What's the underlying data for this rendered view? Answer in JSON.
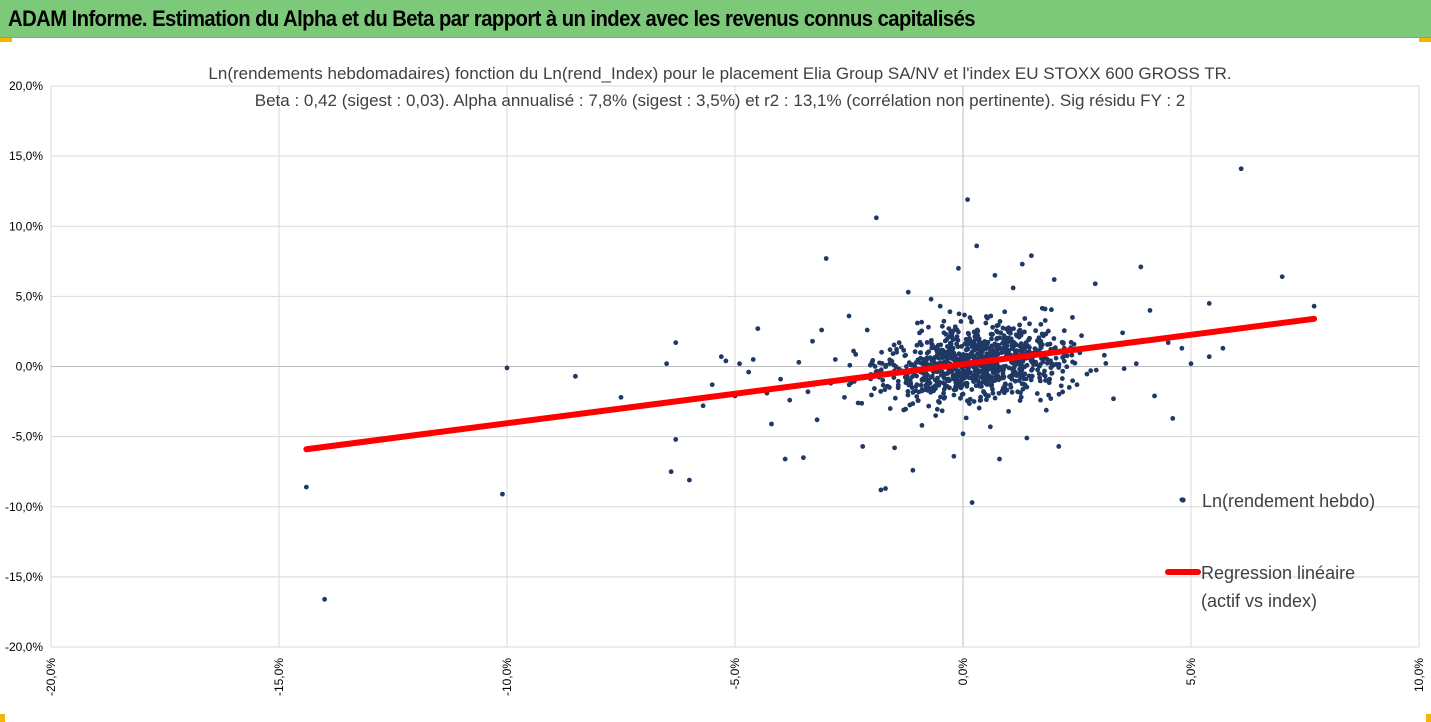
{
  "banner": {
    "title": "ADAM Informe. Estimation du Alpha et du Beta par rapport à un index avec les revenus connus capitalisés",
    "background_color": "#7dc97a",
    "corner_color": "#f5b400"
  },
  "chart_data": {
    "type": "scatter",
    "title_lines": [
      "Ln(rendements hebdomadaires) fonction du Ln(rend_Index) pour le placement Elia Group SA/NV et l'index EU STOXX 600 GROSS TR.",
      "Beta : 0,42 (sigest : 0,03). Alpha annualisé : 7,8% (sigest : 3,5%) et r2 : 13,1% (corrélation non pertinente). Sig résidu FY : 2"
    ],
    "xlim": [
      -0.2,
      0.1
    ],
    "ylim": [
      -0.2,
      0.2
    ],
    "x_ticks": [
      -0.2,
      -0.15,
      -0.1,
      -0.05,
      0.0,
      0.05,
      0.1
    ],
    "x_tick_labels": [
      "-20,0%",
      "-15,0%",
      "-10,0%",
      "-5,0%",
      "0,0%",
      "5,0%",
      "10,0%"
    ],
    "y_ticks": [
      0.2,
      0.15,
      0.1,
      0.05,
      0.0,
      -0.05,
      -0.1,
      -0.15,
      -0.2
    ],
    "y_tick_labels": [
      "20,0%",
      "15,0%",
      "10,0%",
      "5,0%",
      "0,0%",
      "-5,0%",
      "-10,0%",
      "-15,0%",
      "-20,0%"
    ],
    "grid": "vertical",
    "legend_position": "right",
    "series": [
      {
        "name": "Ln(rendement hebdo)",
        "kind": "scatter",
        "color": "#1f3864",
        "points": [
          [
            -0.144,
            -0.086
          ],
          [
            -0.14,
            -0.166
          ],
          [
            -0.101,
            -0.091
          ],
          [
            -0.1,
            -0.001
          ],
          [
            -0.085,
            -0.007
          ],
          [
            -0.084,
            -0.034
          ],
          [
            -0.075,
            -0.022
          ],
          [
            -0.065,
            0.002
          ],
          [
            -0.064,
            -0.075
          ],
          [
            -0.063,
            0.017
          ],
          [
            -0.063,
            -0.052
          ],
          [
            -0.06,
            -0.081
          ],
          [
            -0.057,
            -0.028
          ],
          [
            -0.055,
            -0.013
          ],
          [
            -0.053,
            0.007
          ],
          [
            -0.052,
            0.004
          ],
          [
            -0.05,
            -0.021
          ],
          [
            -0.049,
            0.002
          ],
          [
            -0.047,
            -0.004
          ],
          [
            -0.046,
            0.005
          ],
          [
            -0.045,
            0.027
          ],
          [
            -0.043,
            -0.019
          ],
          [
            -0.042,
            -0.041
          ],
          [
            -0.04,
            -0.009
          ],
          [
            -0.039,
            -0.066
          ],
          [
            -0.038,
            -0.024
          ],
          [
            -0.036,
            0.003
          ],
          [
            -0.035,
            -0.065
          ],
          [
            -0.034,
            -0.018
          ],
          [
            -0.033,
            0.018
          ],
          [
            -0.032,
            -0.038
          ],
          [
            -0.031,
            0.026
          ],
          [
            -0.03,
            0.077
          ],
          [
            -0.029,
            -0.012
          ],
          [
            -0.028,
            0.005
          ],
          [
            -0.026,
            -0.022
          ],
          [
            -0.025,
            0.036
          ],
          [
            -0.024,
            0.011
          ],
          [
            -0.023,
            -0.026
          ],
          [
            -0.022,
            -0.057
          ],
          [
            -0.021,
            0.026
          ],
          [
            -0.02,
            -0.006
          ],
          [
            -0.019,
            0.106
          ],
          [
            -0.018,
            -0.088
          ],
          [
            -0.017,
            -0.087
          ],
          [
            -0.016,
            0.012
          ],
          [
            -0.015,
            -0.058
          ],
          [
            -0.014,
            0.017
          ],
          [
            -0.013,
            -0.031
          ],
          [
            -0.012,
            0.053
          ],
          [
            -0.011,
            -0.074
          ],
          [
            -0.01,
            0.031
          ],
          [
            -0.009,
            -0.042
          ],
          [
            -0.008,
            0.002
          ],
          [
            -0.007,
            0.048
          ],
          [
            -0.006,
            -0.035
          ],
          [
            -0.005,
            0.043
          ],
          [
            -0.004,
            -0.022
          ],
          [
            -0.003,
            0.012
          ],
          [
            -0.002,
            -0.064
          ],
          [
            -0.001,
            0.07
          ],
          [
            0.0,
            -0.048
          ],
          [
            0.001,
            0.119
          ],
          [
            0.002,
            -0.097
          ],
          [
            0.003,
            0.086
          ],
          [
            0.004,
            -0.012
          ],
          [
            0.005,
            0.031
          ],
          [
            0.006,
            -0.043
          ],
          [
            0.007,
            0.065
          ],
          [
            0.008,
            -0.066
          ],
          [
            0.009,
            0.022
          ],
          [
            0.01,
            -0.032
          ],
          [
            0.011,
            0.056
          ],
          [
            0.012,
            -0.018
          ],
          [
            0.013,
            0.073
          ],
          [
            0.014,
            -0.051
          ],
          [
            0.015,
            0.079
          ],
          [
            0.016,
            0.012
          ],
          [
            0.017,
            -0.024
          ],
          [
            0.018,
            0.041
          ],
          [
            0.019,
            -0.009
          ],
          [
            0.02,
            0.062
          ],
          [
            0.021,
            -0.057
          ],
          [
            0.022,
            0.017
          ],
          [
            0.024,
            0.035
          ],
          [
            0.025,
            -0.013
          ],
          [
            0.026,
            0.022
          ],
          [
            0.028,
            -0.003
          ],
          [
            0.029,
            0.059
          ],
          [
            0.031,
            0.008
          ],
          [
            0.033,
            -0.023
          ],
          [
            0.035,
            0.024
          ],
          [
            0.038,
            0.002
          ],
          [
            0.039,
            0.071
          ],
          [
            0.041,
            0.04
          ],
          [
            0.042,
            -0.021
          ],
          [
            0.045,
            0.017
          ],
          [
            0.046,
            -0.037
          ],
          [
            0.048,
            0.013
          ],
          [
            0.048,
            -0.095
          ],
          [
            0.05,
            0.002
          ],
          [
            0.054,
            0.045
          ],
          [
            0.054,
            0.007
          ],
          [
            0.057,
            0.013
          ],
          [
            0.061,
            0.141
          ],
          [
            0.07,
            0.064
          ],
          [
            0.077,
            0.043
          ]
        ]
      },
      {
        "name": "Regression linéaire\n(actif vs index)",
        "legend_lines": [
          "Regression linéaire",
          "(actif vs index)"
        ],
        "kind": "line",
        "color": "#ff0000",
        "points": [
          [
            -0.144,
            -0.059
          ],
          [
            0.077,
            0.034
          ]
        ]
      }
    ]
  }
}
